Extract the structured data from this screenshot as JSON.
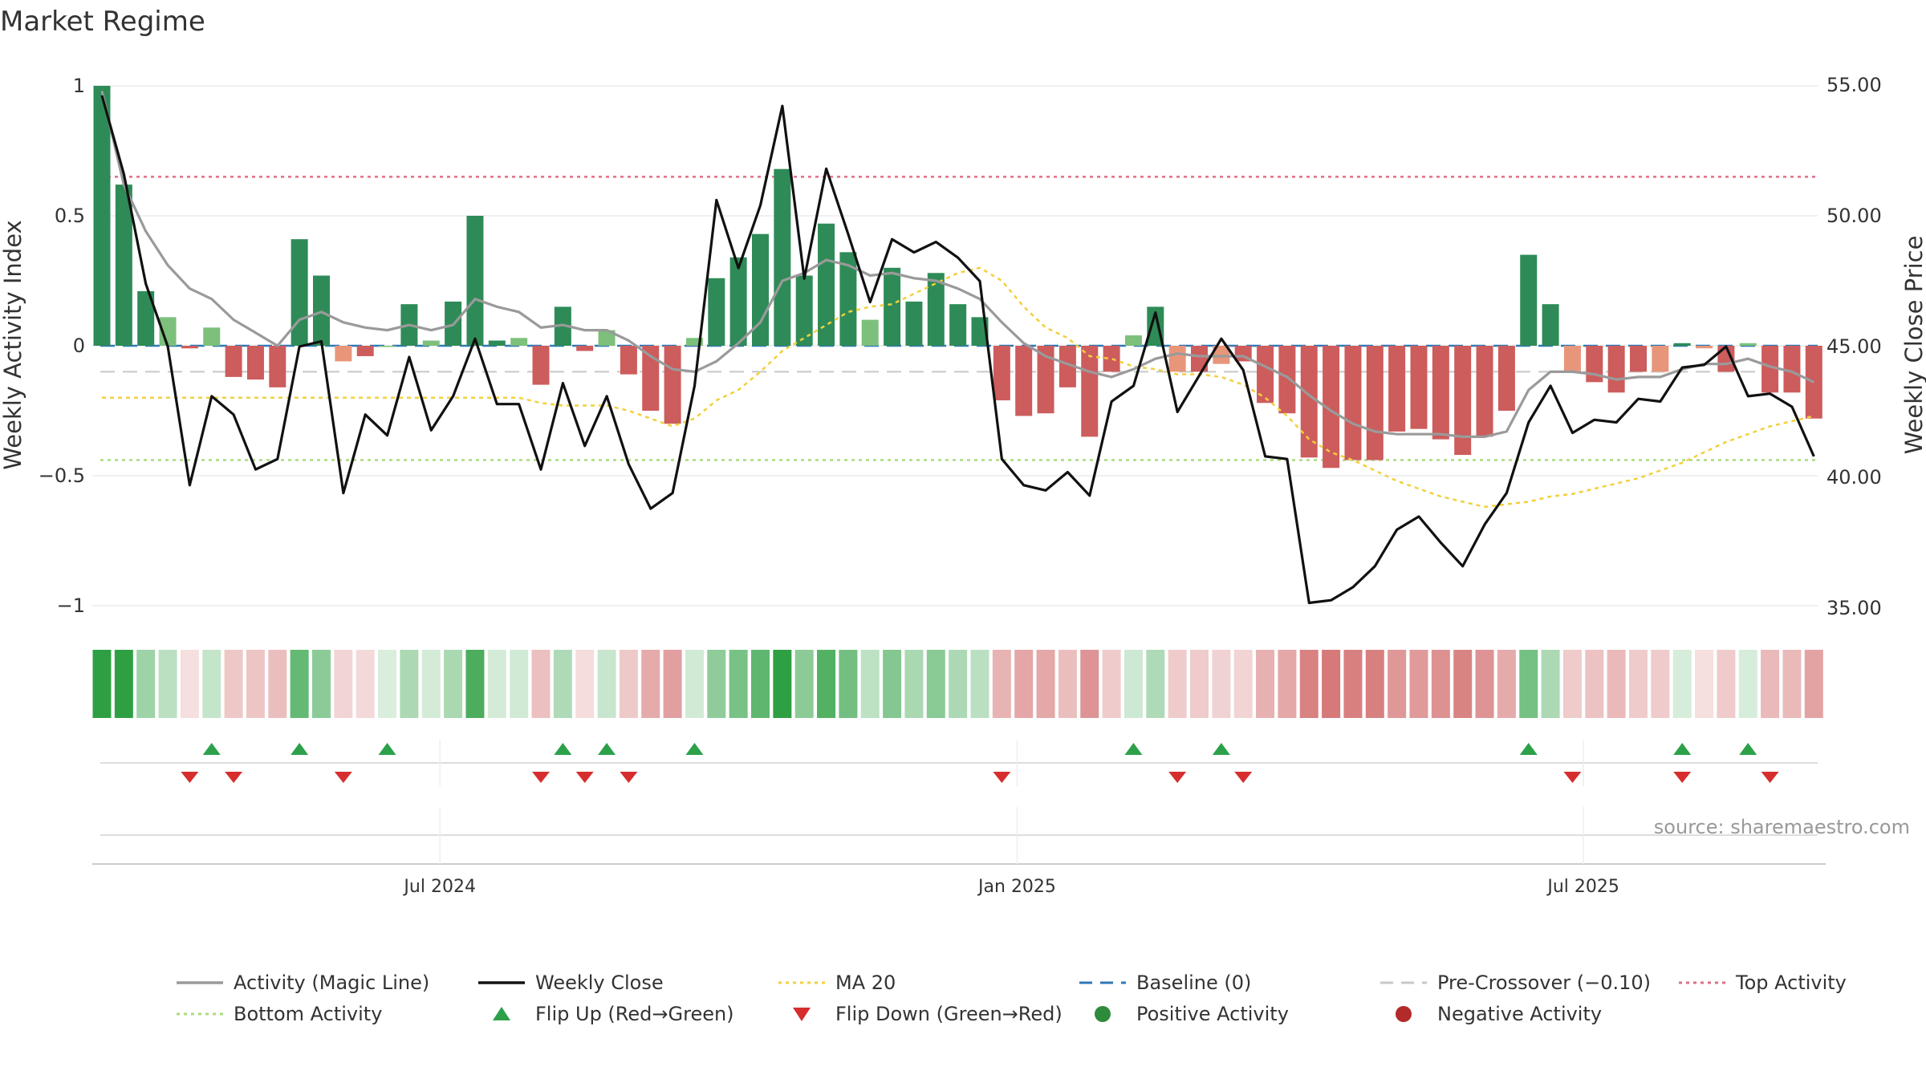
{
  "chart_data": {
    "type": "bar",
    "title": "Market Regime",
    "ylabel_left": "Weekly Activity Index",
    "ylabel_right": "Weekly Close Price",
    "left_axis": {
      "ylim": [
        -1.1,
        1.0
      ],
      "ticks": [
        1,
        0.5,
        0,
        -0.5,
        -1
      ],
      "tick_labels": [
        "1",
        "0.5",
        "0",
        "−0.5",
        "−1"
      ]
    },
    "right_axis": {
      "ylim": [
        34.0,
        54.0
      ],
      "ticks": [
        55,
        50,
        45,
        40,
        35
      ],
      "tick_labels": [
        "55.00",
        "50.00",
        "45.00",
        "40.00",
        "35.00"
      ]
    },
    "x_axis": {
      "weeks": 79,
      "date_ticks": [
        {
          "label": "Jul 2024",
          "week": 15.4
        },
        {
          "label": "Jan 2025",
          "week": 41.7
        },
        {
          "label": "Jul 2025",
          "week": 67.5
        }
      ]
    },
    "activity": [
      1.0,
      0.62,
      0.21,
      0.11,
      -0.01,
      0.07,
      -0.12,
      -0.13,
      -0.16,
      0.41,
      0.27,
      -0.06,
      -0.04,
      0.0,
      0.16,
      0.02,
      0.17,
      0.5,
      0.02,
      0.03,
      -0.15,
      0.15,
      -0.02,
      0.06,
      -0.11,
      -0.25,
      -0.3,
      0.03,
      0.26,
      0.34,
      0.43,
      0.68,
      0.27,
      0.47,
      0.36,
      0.1,
      0.3,
      0.17,
      0.28,
      0.16,
      0.11,
      -0.21,
      -0.27,
      -0.26,
      -0.16,
      -0.35,
      -0.1,
      0.04,
      0.15,
      -0.1,
      -0.1,
      -0.07,
      -0.06,
      -0.22,
      -0.26,
      -0.43,
      -0.47,
      -0.44,
      -0.44,
      -0.33,
      -0.32,
      -0.36,
      -0.42,
      -0.35,
      -0.25,
      0.35,
      0.16,
      -0.1,
      -0.14,
      -0.18,
      -0.1,
      -0.1,
      0.01,
      -0.01,
      -0.1,
      0.01,
      -0.18,
      -0.18,
      -0.28
    ],
    "magic_line": [
      0.98,
      0.62,
      0.44,
      0.31,
      0.22,
      0.18,
      0.1,
      0.05,
      0.0,
      0.1,
      0.13,
      0.09,
      0.07,
      0.06,
      0.08,
      0.06,
      0.08,
      0.18,
      0.15,
      0.13,
      0.07,
      0.08,
      0.06,
      0.06,
      0.02,
      -0.04,
      -0.09,
      -0.1,
      -0.06,
      0.01,
      0.09,
      0.25,
      0.28,
      0.33,
      0.31,
      0.27,
      0.28,
      0.26,
      0.25,
      0.22,
      0.18,
      0.09,
      0.01,
      -0.04,
      -0.07,
      -0.1,
      -0.12,
      -0.09,
      -0.05,
      -0.03,
      -0.04,
      -0.04,
      -0.04,
      -0.08,
      -0.12,
      -0.19,
      -0.25,
      -0.3,
      -0.33,
      -0.34,
      -0.34,
      -0.34,
      -0.35,
      -0.35,
      -0.33,
      -0.17,
      -0.1,
      -0.1,
      -0.11,
      -0.13,
      -0.12,
      -0.12,
      -0.09,
      -0.07,
      -0.07,
      -0.05,
      -0.08,
      -0.1,
      -0.14
    ],
    "weekly_close": [
      54.6,
      51.6,
      47.4,
      45.0,
      39.7,
      43.1,
      42.4,
      40.3,
      40.7,
      45.0,
      45.2,
      39.4,
      42.4,
      41.6,
      44.6,
      41.8,
      43.1,
      45.3,
      42.8,
      42.8,
      40.3,
      43.6,
      41.2,
      43.1,
      40.5,
      38.8,
      39.4,
      43.5,
      50.6,
      48.0,
      50.4,
      54.2,
      47.6,
      51.8,
      49.3,
      46.7,
      49.1,
      48.6,
      49.0,
      48.4,
      47.5,
      40.7,
      39.7,
      39.5,
      40.2,
      39.3,
      42.9,
      43.5,
      46.3,
      42.5,
      43.9,
      45.3,
      44.1,
      40.8,
      40.7,
      35.2,
      35.3,
      35.8,
      36.6,
      38.0,
      38.5,
      37.5,
      36.6,
      38.2,
      39.4,
      42.1,
      43.5,
      41.7,
      42.2,
      42.1,
      43.0,
      42.9,
      44.2,
      44.3,
      45.0,
      43.1,
      43.2,
      42.7,
      40.8
    ],
    "ma20": [
      -0.2,
      -0.2,
      -0.2,
      -0.2,
      -0.2,
      -0.2,
      -0.2,
      -0.2,
      -0.2,
      -0.2,
      -0.2,
      -0.2,
      -0.2,
      -0.2,
      -0.2,
      -0.2,
      -0.2,
      -0.2,
      -0.2,
      -0.2,
      -0.22,
      -0.23,
      -0.23,
      -0.23,
      -0.25,
      -0.28,
      -0.31,
      -0.28,
      -0.21,
      -0.17,
      -0.1,
      -0.02,
      0.03,
      0.08,
      0.13,
      0.15,
      0.16,
      0.2,
      0.24,
      0.28,
      0.3,
      0.25,
      0.15,
      0.07,
      0.03,
      -0.04,
      -0.05,
      -0.08,
      -0.09,
      -0.11,
      -0.11,
      -0.12,
      -0.15,
      -0.2,
      -0.27,
      -0.36,
      -0.41,
      -0.44,
      -0.48,
      -0.52,
      -0.55,
      -0.58,
      -0.6,
      -0.62,
      -0.61,
      -0.6,
      -0.58,
      -0.57,
      -0.55,
      -0.53,
      -0.51,
      -0.48,
      -0.45,
      -0.41,
      -0.37,
      -0.34,
      -0.31,
      -0.29,
      -0.27
    ],
    "reference_lines": {
      "baseline": 0,
      "pre_crossover": -0.1,
      "top_activity": 0.65,
      "bottom_activity": -0.44
    },
    "flip_up_weeks": [
      5,
      9,
      13,
      21,
      23,
      27,
      47,
      51,
      65,
      72,
      75
    ],
    "flip_down_weeks": [
      4,
      6,
      11,
      20,
      22,
      24,
      41,
      49,
      52,
      67,
      72,
      76
    ],
    "source": "source: sharemaestro.com",
    "legend": [
      {
        "label": "Activity (Magic Line)",
        "kind": "solid",
        "color": "#9a9a9a"
      },
      {
        "label": "Weekly Close",
        "kind": "solid",
        "color": "#111111"
      },
      {
        "label": "MA 20",
        "kind": "dotted",
        "color": "#f2d03b"
      },
      {
        "label": "Baseline (0)",
        "kind": "dashed",
        "color": "#2f78b7"
      },
      {
        "label": "Pre-Crossover (−0.10)",
        "kind": "dashed",
        "color": "#c8c8c8"
      },
      {
        "label": "Top Activity",
        "kind": "dotted",
        "color": "#e06f86"
      },
      {
        "label": "Bottom Activity",
        "kind": "dotted",
        "color": "#a9dc7e"
      },
      {
        "label": "Flip Up (Red→Green)",
        "kind": "tri-up",
        "color": "#2ca14a"
      },
      {
        "label": "Flip Down (Green→Red)",
        "kind": "tri-down",
        "color": "#d62e2e"
      },
      {
        "label": "Positive Activity",
        "kind": "dot",
        "color": "#2e8b3b"
      },
      {
        "label": "Negative Activity",
        "kind": "dot",
        "color": "#b22a2a"
      }
    ],
    "colors": {
      "strong_green": "#2e8b57",
      "light_green": "#7cc07c",
      "strong_red": "#cd5c5c",
      "light_red": "#e8967a"
    }
  }
}
